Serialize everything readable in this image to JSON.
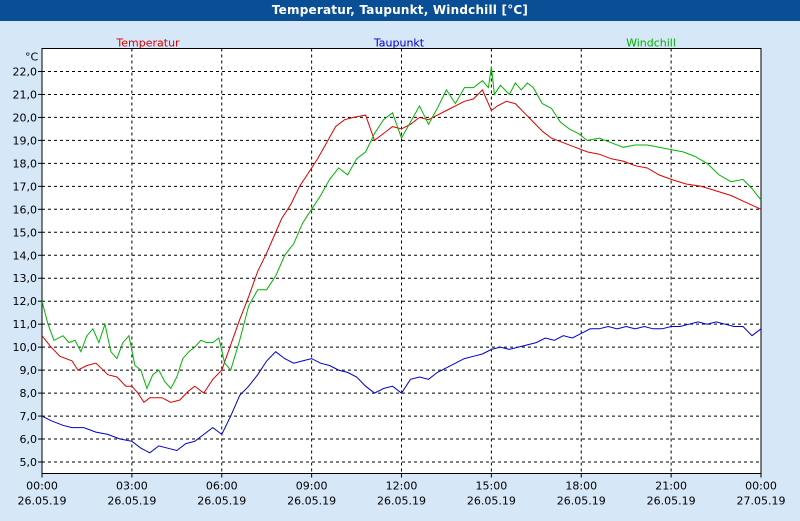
{
  "window": {
    "title": "Temperatur, Taupunkt, Windchill [°C]"
  },
  "colors": {
    "background": "#d6e7f7",
    "plot_bg": "#ffffff",
    "titlebar": "#0a4f95",
    "temperatur": "#e00000",
    "taupunkt": "#0000c8",
    "windchill": "#00b400"
  },
  "chart_data": {
    "type": "line",
    "title": "Temperatur, Taupunkt, Windchill [°C]",
    "ylabel": "°C",
    "ylim": [
      4.5,
      23.0
    ],
    "yticks": [
      5,
      6,
      7,
      8,
      9,
      10,
      11,
      12,
      13,
      14,
      15,
      16,
      17,
      18,
      19,
      20,
      21,
      22
    ],
    "ytick_labels": [
      "5,0",
      "6,0",
      "7,0",
      "8,0",
      "9,0",
      "10,0",
      "11,0",
      "12,0",
      "13,0",
      "14,0",
      "15,0",
      "16,0",
      "17,0",
      "18,0",
      "19,0",
      "20,0",
      "21,0",
      "22,0"
    ],
    "xlim": [
      0,
      24
    ],
    "xticks": [
      0,
      3,
      6,
      9,
      12,
      15,
      18,
      21,
      24
    ],
    "xtick_time": [
      "00:00",
      "03:00",
      "06:00",
      "09:00",
      "12:00",
      "15:00",
      "18:00",
      "21:00",
      "00:00"
    ],
    "xtick_date": [
      "26.05.19",
      "26.05.19",
      "26.05.19",
      "26.05.19",
      "26.05.19",
      "26.05.19",
      "26.05.19",
      "26.05.19",
      "27.05.19"
    ],
    "grid": true,
    "series": [
      {
        "name": "Temperatur",
        "color": "#e00000",
        "x": [
          0,
          0.3,
          0.6,
          1.0,
          1.2,
          1.5,
          1.8,
          2.2,
          2.5,
          2.8,
          3.0,
          3.2,
          3.4,
          3.6,
          4.0,
          4.3,
          4.6,
          4.9,
          5.1,
          5.4,
          5.7,
          6.0,
          6.3,
          6.6,
          6.9,
          7.2,
          7.5,
          8.0,
          8.3,
          8.6,
          8.9,
          9.2,
          9.5,
          9.8,
          10.1,
          10.4,
          10.8,
          11.1,
          11.4,
          11.7,
          12.0,
          12.3,
          12.6,
          12.9,
          13.2,
          13.5,
          13.8,
          14.1,
          14.4,
          14.7,
          15.0,
          15.2,
          15.5,
          15.8,
          16.1,
          16.4,
          16.7,
          17.0,
          17.4,
          17.8,
          18.2,
          18.6,
          19.0,
          19.4,
          19.8,
          20.2,
          20.6,
          21.0,
          21.5,
          22.0,
          22.5,
          23.0,
          23.5,
          24.0
        ],
        "values": [
          10.5,
          10.0,
          9.6,
          9.4,
          9.0,
          9.2,
          9.3,
          8.8,
          8.7,
          8.3,
          8.3,
          8.0,
          7.6,
          7.8,
          7.8,
          7.6,
          7.7,
          8.1,
          8.3,
          8.0,
          8.6,
          9.0,
          10.1,
          11.2,
          12.2,
          13.3,
          14.1,
          15.6,
          16.2,
          17.0,
          17.6,
          18.2,
          18.9,
          19.6,
          19.9,
          20.0,
          20.1,
          19.0,
          19.3,
          19.6,
          19.5,
          19.7,
          20.0,
          19.9,
          20.1,
          20.3,
          20.5,
          20.7,
          20.8,
          21.2,
          20.3,
          20.5,
          20.7,
          20.6,
          20.2,
          19.8,
          19.4,
          19.1,
          18.9,
          18.7,
          18.5,
          18.4,
          18.2,
          18.1,
          17.9,
          17.8,
          17.5,
          17.3,
          17.1,
          17.0,
          16.8,
          16.6,
          16.3,
          16.0
        ]
      },
      {
        "name": "Taupunkt",
        "color": "#0000c8",
        "x": [
          0,
          0.3,
          0.7,
          1.0,
          1.4,
          1.8,
          2.2,
          2.6,
          3.0,
          3.3,
          3.6,
          3.9,
          4.2,
          4.5,
          4.8,
          5.1,
          5.4,
          5.7,
          6.0,
          6.3,
          6.6,
          6.9,
          7.2,
          7.5,
          7.8,
          8.1,
          8.4,
          8.7,
          9.0,
          9.3,
          9.6,
          9.9,
          10.2,
          10.5,
          10.8,
          11.1,
          11.4,
          11.7,
          12.0,
          12.3,
          12.6,
          12.9,
          13.2,
          13.5,
          13.8,
          14.1,
          14.4,
          14.7,
          15.0,
          15.3,
          15.6,
          15.9,
          16.2,
          16.5,
          16.8,
          17.1,
          17.4,
          17.7,
          18.0,
          18.3,
          18.6,
          18.9,
          19.2,
          19.5,
          19.8,
          20.1,
          20.4,
          20.7,
          21.0,
          21.3,
          21.6,
          21.9,
          22.2,
          22.5,
          22.8,
          23.1,
          23.4,
          23.7,
          24.0
        ],
        "values": [
          7.0,
          6.8,
          6.6,
          6.5,
          6.5,
          6.3,
          6.2,
          6.0,
          5.9,
          5.6,
          5.4,
          5.7,
          5.6,
          5.5,
          5.8,
          5.9,
          6.2,
          6.5,
          6.2,
          7.0,
          7.9,
          8.3,
          8.8,
          9.4,
          9.8,
          9.5,
          9.3,
          9.4,
          9.5,
          9.3,
          9.2,
          9.0,
          8.9,
          8.7,
          8.3,
          8.0,
          8.2,
          8.3,
          8.0,
          8.6,
          8.7,
          8.6,
          8.9,
          9.1,
          9.3,
          9.5,
          9.6,
          9.7,
          9.9,
          10.0,
          9.9,
          10.0,
          10.1,
          10.2,
          10.4,
          10.3,
          10.5,
          10.4,
          10.6,
          10.8,
          10.8,
          10.9,
          10.8,
          10.9,
          10.8,
          10.9,
          10.8,
          10.8,
          10.9,
          10.9,
          11.0,
          11.1,
          11.0,
          11.1,
          11.0,
          10.9,
          10.9,
          10.5,
          10.8
        ]
      },
      {
        "name": "Windchill",
        "color": "#00b400",
        "x": [
          0,
          0.2,
          0.4,
          0.7,
          0.9,
          1.1,
          1.3,
          1.5,
          1.7,
          1.9,
          2.1,
          2.3,
          2.5,
          2.7,
          2.9,
          3.1,
          3.3,
          3.5,
          3.7,
          3.9,
          4.1,
          4.3,
          4.5,
          4.7,
          4.9,
          5.1,
          5.3,
          5.5,
          5.7,
          5.9,
          6.1,
          6.3,
          6.6,
          6.9,
          7.2,
          7.5,
          7.8,
          8.1,
          8.4,
          8.7,
          9.0,
          9.3,
          9.6,
          9.9,
          10.2,
          10.5,
          10.8,
          11.1,
          11.4,
          11.7,
          12.0,
          12.3,
          12.6,
          12.9,
          13.2,
          13.5,
          13.8,
          14.1,
          14.4,
          14.7,
          14.9,
          15.0,
          15.1,
          15.3,
          15.6,
          15.8,
          16.0,
          16.2,
          16.4,
          16.7,
          17.0,
          17.3,
          17.6,
          17.9,
          18.2,
          18.6,
          19.0,
          19.4,
          19.8,
          20.2,
          20.6,
          21.0,
          21.4,
          21.8,
          22.2,
          22.6,
          23.0,
          23.4,
          23.7,
          24.0
        ],
        "values": [
          12.0,
          11.0,
          10.3,
          10.5,
          10.2,
          10.3,
          9.8,
          10.5,
          10.8,
          10.2,
          11.0,
          9.8,
          9.5,
          10.2,
          10.5,
          9.2,
          9.0,
          8.2,
          8.8,
          9.0,
          8.5,
          8.2,
          8.7,
          9.5,
          9.8,
          10.0,
          10.3,
          10.2,
          10.2,
          10.4,
          9.3,
          9.0,
          10.3,
          11.8,
          12.5,
          12.5,
          13.1,
          14.0,
          14.5,
          15.4,
          16.0,
          16.6,
          17.3,
          17.8,
          17.5,
          18.2,
          18.5,
          19.3,
          19.9,
          20.2,
          19.1,
          19.8,
          20.5,
          19.7,
          20.4,
          21.2,
          20.6,
          21.3,
          21.3,
          21.6,
          21.3,
          22.2,
          21.0,
          21.4,
          21.0,
          21.5,
          21.2,
          21.5,
          21.3,
          20.6,
          20.4,
          19.8,
          19.5,
          19.3,
          19.0,
          19.1,
          18.9,
          18.7,
          18.8,
          18.8,
          18.7,
          18.6,
          18.5,
          18.3,
          18.0,
          17.5,
          17.2,
          17.3,
          16.9,
          16.4
        ]
      }
    ]
  }
}
